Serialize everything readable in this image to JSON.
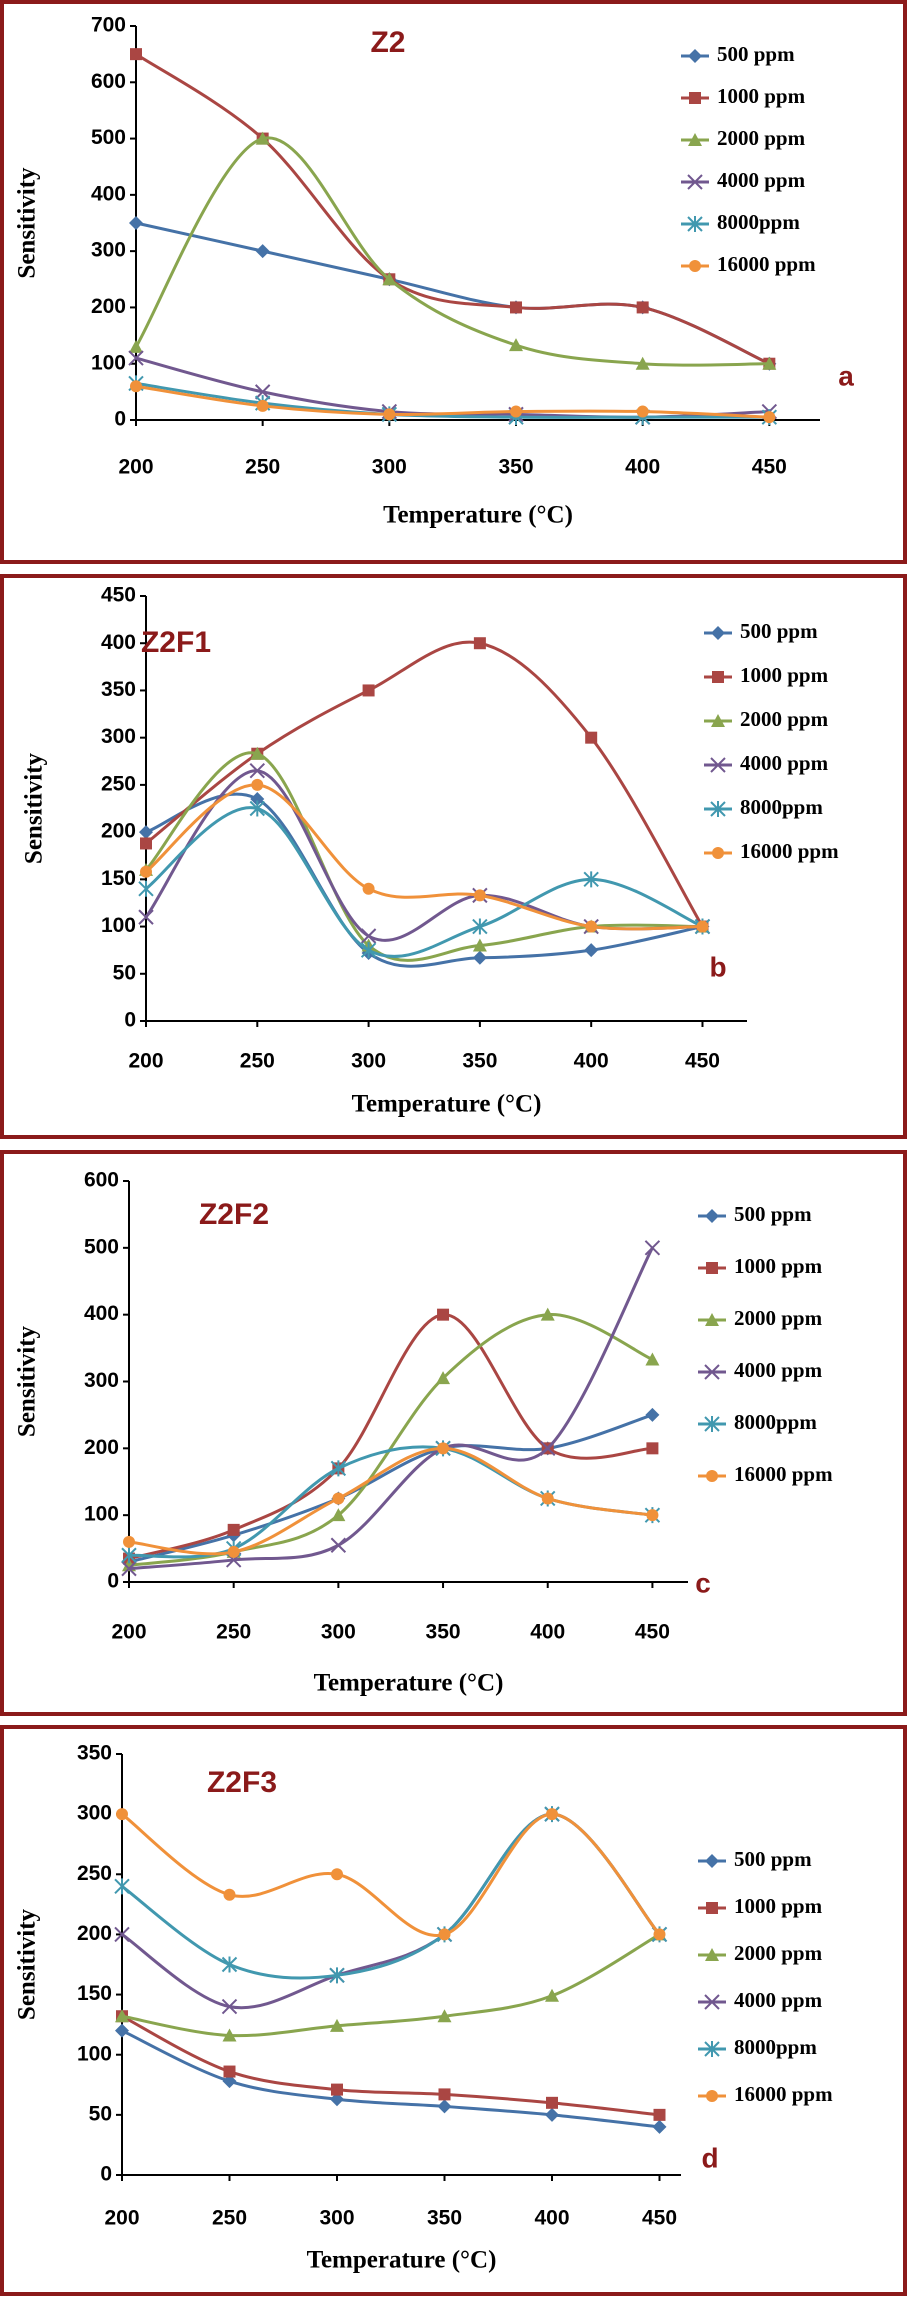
{
  "chart_data": [
    {
      "type": "line",
      "title": "Z2",
      "panel_label": "a",
      "x_label": "Temperature (°C)",
      "y_label": "Sensitivity",
      "x": [
        200,
        250,
        300,
        350,
        400,
        450
      ],
      "xlim": [
        200,
        470
      ],
      "xticks": [
        200,
        250,
        300,
        350,
        400,
        450
      ],
      "ylim": [
        0,
        700
      ],
      "yticks": [
        0,
        100,
        200,
        300,
        400,
        500,
        600,
        700
      ],
      "series": [
        {
          "name": "500 ppm",
          "color": "#4572a7",
          "marker": "diamond",
          "values": [
            350,
            300,
            250,
            200,
            200,
            100
          ]
        },
        {
          "name": "1000 ppm",
          "color": "#aa4643",
          "marker": "square",
          "values": [
            650,
            500,
            250,
            200,
            200,
            100
          ]
        },
        {
          "name": "2000 ppm",
          "color": "#89a54e",
          "marker": "triangle",
          "values": [
            130,
            500,
            250,
            133,
            100,
            100
          ]
        },
        {
          "name": "4000 ppm",
          "color": "#71588f",
          "marker": "x",
          "values": [
            110,
            50,
            15,
            10,
            5,
            15
          ]
        },
        {
          "name": "8000ppm",
          "color": "#4198af",
          "marker": "star",
          "values": [
            65,
            30,
            10,
            5,
            5,
            5
          ]
        },
        {
          "name": "16000 ppm",
          "color": "#f0913a",
          "marker": "circle",
          "values": [
            60,
            25,
            10,
            15,
            15,
            5
          ]
        }
      ]
    },
    {
      "type": "line",
      "title": "Z2F1",
      "panel_label": "b",
      "x_label": "Temperature (°C)",
      "y_label": "Sensitivity",
      "x": [
        200,
        250,
        300,
        350,
        400,
        450
      ],
      "xlim": [
        200,
        470
      ],
      "xticks": [
        200,
        250,
        300,
        350,
        400,
        450
      ],
      "ylim": [
        0,
        450
      ],
      "yticks": [
        0,
        50,
        100,
        150,
        200,
        250,
        300,
        350,
        400,
        450
      ],
      "series": [
        {
          "name": "500 ppm",
          "color": "#4572a7",
          "marker": "diamond",
          "values": [
            200,
            235,
            72,
            67,
            75,
            100
          ]
        },
        {
          "name": "1000 ppm",
          "color": "#aa4643",
          "marker": "square",
          "values": [
            188,
            283,
            350,
            400,
            300,
            100
          ]
        },
        {
          "name": "2000 ppm",
          "color": "#89a54e",
          "marker": "triangle",
          "values": [
            160,
            283,
            80,
            80,
            100,
            100
          ]
        },
        {
          "name": "4000 ppm",
          "color": "#71588f",
          "marker": "x",
          "values": [
            110,
            265,
            90,
            133,
            100,
            100
          ]
        },
        {
          "name": "8000ppm",
          "color": "#4198af",
          "marker": "star",
          "values": [
            140,
            225,
            75,
            100,
            150,
            100
          ]
        },
        {
          "name": "16000 ppm",
          "color": "#f0913a",
          "marker": "circle",
          "values": [
            158,
            250,
            140,
            133,
            100,
            100
          ]
        }
      ]
    },
    {
      "type": "line",
      "title": "Z2F2",
      "panel_label": "c",
      "x_label": "Temperature (°C)",
      "y_label": "Sensitivity",
      "x": [
        200,
        250,
        300,
        350,
        400,
        450
      ],
      "xlim": [
        200,
        467
      ],
      "xticks": [
        200,
        250,
        300,
        350,
        400,
        450
      ],
      "ylim": [
        0,
        600
      ],
      "yticks": [
        0,
        100,
        200,
        300,
        400,
        500,
        600
      ],
      "series": [
        {
          "name": "500 ppm",
          "color": "#4572a7",
          "marker": "diamond",
          "values": [
            30,
            70,
            125,
            200,
            200,
            250
          ]
        },
        {
          "name": "1000 ppm",
          "color": "#aa4643",
          "marker": "square",
          "values": [
            35,
            78,
            170,
            400,
            200,
            200
          ]
        },
        {
          "name": "2000 ppm",
          "color": "#89a54e",
          "marker": "triangle",
          "values": [
            25,
            45,
            100,
            305,
            400,
            333
          ]
        },
        {
          "name": "4000 ppm",
          "color": "#71588f",
          "marker": "x",
          "values": [
            20,
            33,
            55,
            200,
            200,
            500
          ]
        },
        {
          "name": "8000ppm",
          "color": "#4198af",
          "marker": "star",
          "values": [
            40,
            50,
            170,
            200,
            125,
            100
          ]
        },
        {
          "name": "16000 ppm",
          "color": "#f0913a",
          "marker": "circle",
          "values": [
            60,
            45,
            125,
            200,
            125,
            100
          ]
        }
      ]
    },
    {
      "type": "line",
      "title": "Z2F3",
      "panel_label": "d",
      "x_label": "Temperature (°C)",
      "y_label": "Sensitivity",
      "x": [
        200,
        250,
        300,
        350,
        400,
        450
      ],
      "xlim": [
        200,
        460
      ],
      "xticks": [
        200,
        250,
        300,
        350,
        400,
        450
      ],
      "ylim": [
        0,
        350
      ],
      "yticks": [
        0,
        50,
        100,
        150,
        200,
        250,
        300,
        350
      ],
      "series": [
        {
          "name": "500 ppm",
          "color": "#4572a7",
          "marker": "diamond",
          "values": [
            120,
            78,
            63,
            57,
            50,
            40
          ]
        },
        {
          "name": "1000 ppm",
          "color": "#aa4643",
          "marker": "square",
          "values": [
            132,
            86,
            71,
            67,
            60,
            50
          ]
        },
        {
          "name": "2000 ppm",
          "color": "#89a54e",
          "marker": "triangle",
          "values": [
            132,
            116,
            124,
            132,
            149,
            200
          ]
        },
        {
          "name": "4000 ppm",
          "color": "#71588f",
          "marker": "x",
          "values": [
            200,
            140,
            166,
            200,
            300,
            200
          ]
        },
        {
          "name": "8000ppm",
          "color": "#4198af",
          "marker": "star",
          "values": [
            240,
            175,
            166,
            200,
            300,
            200
          ]
        },
        {
          "name": "16000 ppm",
          "color": "#f0913a",
          "marker": "circle",
          "values": [
            300,
            233,
            250,
            200,
            300,
            200
          ]
        }
      ]
    }
  ]
}
